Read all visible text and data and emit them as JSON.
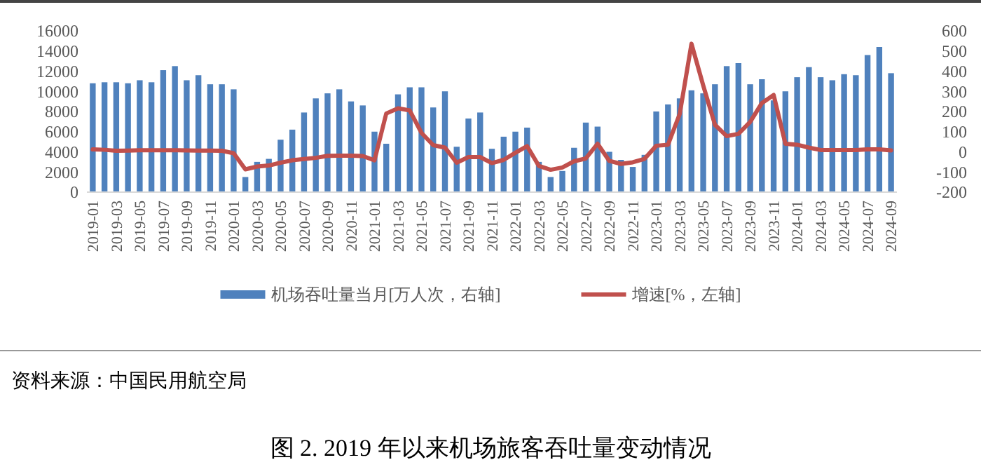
{
  "chart_data": {
    "type": "bar",
    "title": "图 2. 2019 年以来机场旅客吞吐量变动情况",
    "annotations": [
      "资料来源：中国民用航空局"
    ],
    "categories": [
      "2019-01",
      null,
      "2019-03",
      null,
      "2019-05",
      null,
      "2019-07",
      null,
      "2019-09",
      null,
      "2019-11",
      null,
      "2020-01",
      null,
      "2020-03",
      null,
      "2020-05",
      null,
      "2020-07",
      null,
      "2020-09",
      null,
      "2020-11",
      null,
      "2021-01",
      null,
      "2021-03",
      null,
      "2021-05",
      null,
      "2021-07",
      null,
      "2021-09",
      null,
      "2021-11",
      null,
      "2022-01",
      null,
      "2022-03",
      null,
      "2022-05",
      null,
      "2022-07",
      null,
      "2022-09",
      null,
      "2022-11",
      null,
      "2023-01",
      null,
      "2023-03",
      null,
      "2023-05",
      null,
      "2023-07",
      null,
      "2023-09",
      null,
      "2023-11",
      null,
      "2024-01",
      null,
      "2024-03",
      null,
      "2024-05",
      null,
      "2024-07",
      null,
      "2024-09"
    ],
    "series": [
      {
        "name": "机场吞吐量当月[万人次，右轴]",
        "color": "#4f81bd",
        "values": [
          10800,
          10900,
          10900,
          10800,
          11100,
          10900,
          12100,
          12500,
          11100,
          11600,
          10700,
          10700,
          10200,
          1500,
          3000,
          3300,
          5200,
          6200,
          7900,
          9300,
          9800,
          10200,
          9000,
          8600,
          6000,
          4800,
          9700,
          10400,
          10400,
          8400,
          10000,
          4500,
          7300,
          7900,
          4300,
          5500,
          6000,
          6400,
          3000,
          1500,
          2100,
          4400,
          6900,
          6500,
          4000,
          3200,
          2500,
          3700,
          8000,
          8700,
          9300,
          10100,
          9800,
          10700,
          12500,
          12800,
          10700,
          11200,
          9100,
          10000,
          11400,
          12400,
          11400,
          11100,
          11700,
          11600,
          13600,
          14400,
          11800
        ]
      },
      {
        "name": "增速[%，左轴]",
        "type": "line",
        "axis": "y2",
        "color": "#c0504d",
        "values": [
          12,
          10,
          5,
          6,
          8,
          8,
          8,
          8,
          7,
          6,
          6,
          5,
          -7,
          -87,
          -73,
          -68,
          -54,
          -42,
          -36,
          -30,
          -20,
          -19,
          -19,
          -21,
          -42,
          190,
          216,
          205,
          94,
          33,
          21,
          -54,
          -26,
          -26,
          -56,
          -40,
          -5,
          28,
          -70,
          -89,
          -78,
          -47,
          -33,
          40,
          -45,
          -60,
          -52,
          -35,
          30,
          35,
          188,
          536,
          329,
          134,
          78,
          89,
          148,
          242,
          282,
          40,
          35,
          21,
          9,
          9,
          9,
          9,
          12,
          12,
          7
        ]
      }
    ],
    "ylim": [
      0,
      16000
    ],
    "yticks": [
      0,
      2000,
      4000,
      6000,
      8000,
      10000,
      12000,
      14000,
      16000
    ],
    "y2lim": [
      -200,
      600
    ],
    "y2ticks": [
      -200,
      -100,
      0,
      100,
      200,
      300,
      400,
      500,
      600
    ],
    "legend": "bottom",
    "grid": false
  }
}
